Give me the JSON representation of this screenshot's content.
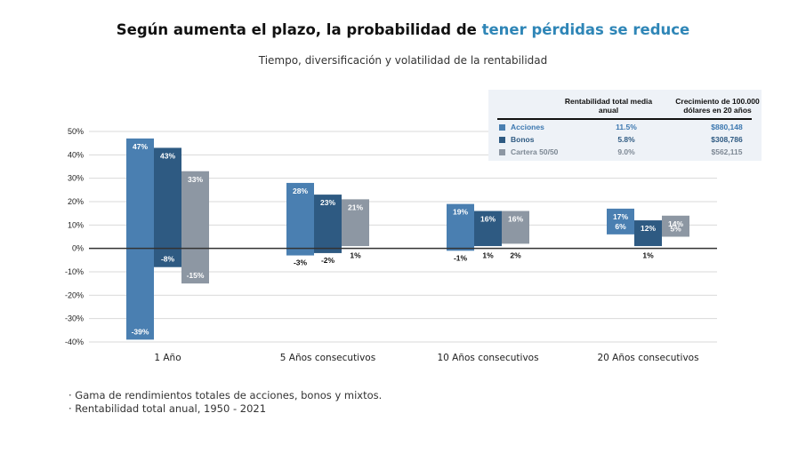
{
  "title": {
    "prefix": "Según aumenta el plazo, la probabilidad de ",
    "highlight": "tener pérdidas se reduce"
  },
  "subtitle": "Tiempo, diversificación y volatilidad de la rentabilidad",
  "colors": {
    "acciones": "#4a7fb1",
    "bonos": "#2e5a82",
    "cartera": "#8d97a3",
    "highlight": "#2f86b7"
  },
  "legend_table": {
    "col1_header": "Rentabilidad total media anual",
    "col2_header": "Crecimiento de 100.000 dólares en 20 años",
    "rows": [
      {
        "name": "Acciones",
        "avg": "11.5%",
        "growth": "$880,148"
      },
      {
        "name": "Bonos",
        "avg": "5.8%",
        "growth": "$308,786"
      },
      {
        "name": "Cartera 50/50",
        "avg": "9.0%",
        "growth": "$562,115"
      }
    ]
  },
  "notes": [
    "· Gama de rendimientos totales de acciones, bonos y mixtos.",
    "· Rentabilidad total anual, 1950 - 2021"
  ],
  "chart_data": {
    "type": "bar",
    "subtype": "floating-range",
    "categories": [
      "1 Año",
      "5 Años consecutivos",
      "10 Años consecutivos",
      "20 Años consecutivos"
    ],
    "series": [
      {
        "name": "Acciones",
        "min": [
          -39,
          -3,
          -1,
          6
        ],
        "max": [
          47,
          28,
          19,
          17
        ],
        "min_labels": [
          "-39%",
          "-3%",
          "-1%",
          "6%"
        ],
        "max_labels": [
          "47%",
          "28%",
          "19%",
          "17%"
        ]
      },
      {
        "name": "Bonos",
        "min": [
          -8,
          -2,
          1,
          1
        ],
        "max": [
          43,
          23,
          16,
          12
        ],
        "min_labels": [
          "-8%",
          "-2%",
          "1%",
          "1%"
        ],
        "max_labels": [
          "43%",
          "23%",
          "16%",
          "12%"
        ]
      },
      {
        "name": "Cartera 50/50",
        "min": [
          -15,
          1,
          2,
          5
        ],
        "max": [
          33,
          21,
          16,
          14
        ],
        "min_labels": [
          "-15%",
          "1%",
          "2%",
          "5%"
        ],
        "max_labels": [
          "33%",
          "21%",
          "16%",
          "14%"
        ]
      }
    ],
    "ylim": [
      -40,
      50
    ],
    "yticks": [
      "50%",
      "40%",
      "30%",
      "20%",
      "10%",
      "0%",
      "-10%",
      "-20%",
      "-30%",
      "-40%"
    ],
    "ytick_values": [
      50,
      40,
      30,
      20,
      10,
      0,
      -10,
      -20,
      -30,
      -40
    ],
    "grid": true
  }
}
